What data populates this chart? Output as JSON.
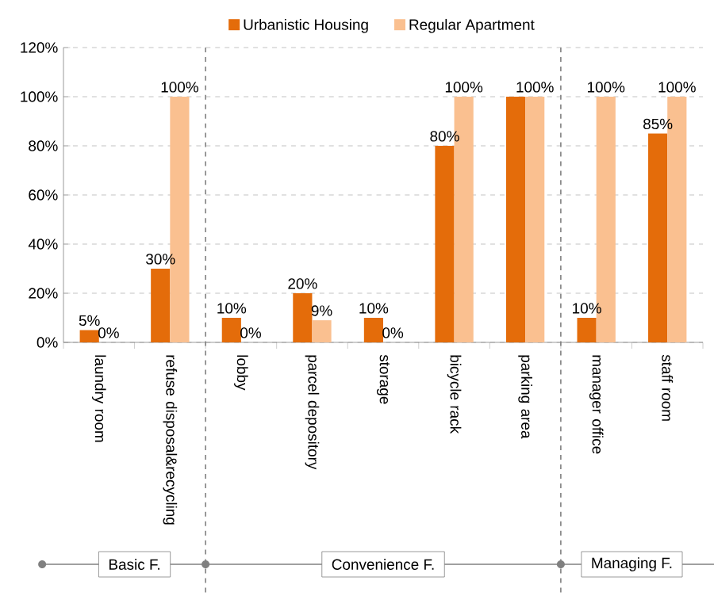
{
  "chart_data": {
    "type": "bar",
    "categories": [
      "laundry room",
      "refuse disposal&recycling",
      "lobby",
      "parcel depository",
      "storage",
      "bicycle rack",
      "parking area",
      "manager office",
      "staff room"
    ],
    "series": [
      {
        "name": "Urbanistic Housing",
        "color": "#e46c0a",
        "values": [
          5,
          30,
          10,
          20,
          10,
          80,
          100,
          10,
          85
        ],
        "value_labels": [
          "5%",
          "30%",
          "10%",
          "20%",
          "10%",
          "80%",
          null,
          "10%",
          "85%"
        ]
      },
      {
        "name": "Regular Apartment",
        "color": "#fac090",
        "values": [
          0,
          100,
          0,
          9,
          0,
          100,
          100,
          100,
          100
        ],
        "value_labels": [
          "0%",
          "100%",
          "0%",
          "9%",
          "0%",
          "100%",
          "100%",
          "100%",
          "100%"
        ]
      }
    ],
    "ylim": [
      0,
      120
    ],
    "yticks": [
      {
        "value": 0,
        "label": "0%"
      },
      {
        "value": 20,
        "label": "20%"
      },
      {
        "value": 40,
        "label": "40%"
      },
      {
        "value": 60,
        "label": "60%"
      },
      {
        "value": 80,
        "label": "80%"
      },
      {
        "value": 100,
        "label": "100%"
      },
      {
        "value": 120,
        "label": "120%"
      }
    ],
    "grid": "y",
    "legend": "top",
    "annotations": [
      "Basic F.",
      "Convenience F.",
      "Managing F."
    ]
  }
}
